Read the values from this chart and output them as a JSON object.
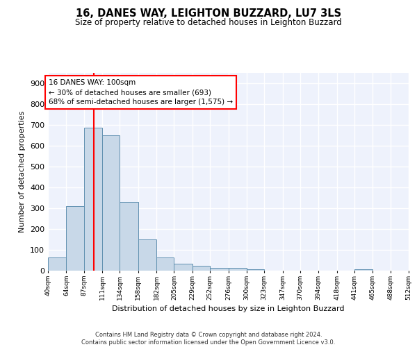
{
  "title1": "16, DANES WAY, LEIGHTON BUZZARD, LU7 3LS",
  "title2": "Size of property relative to detached houses in Leighton Buzzard",
  "xlabel": "Distribution of detached houses by size in Leighton Buzzard",
  "ylabel": "Number of detached properties",
  "footer": "Contains HM Land Registry data © Crown copyright and database right 2024.\nContains public sector information licensed under the Open Government Licence v3.0.",
  "annotation_title": "16 DANES WAY: 100sqm",
  "annotation_line1": "← 30% of detached houses are smaller (693)",
  "annotation_line2": "68% of semi-detached houses are larger (1,575) →",
  "property_size": 100,
  "bar_color": "#c8d8e8",
  "bar_edge_color": "#6090b0",
  "vline_color": "red",
  "background_color": "#eef2fc",
  "grid_color": "white",
  "bins": [
    40,
    64,
    87,
    111,
    134,
    158,
    182,
    205,
    229,
    252,
    276,
    300,
    323,
    347,
    370,
    394,
    418,
    441,
    465,
    488,
    512
  ],
  "bin_labels": [
    "40sqm",
    "64sqm",
    "87sqm",
    "111sqm",
    "134sqm",
    "158sqm",
    "182sqm",
    "205sqm",
    "229sqm",
    "252sqm",
    "276sqm",
    "300sqm",
    "323sqm",
    "347sqm",
    "370sqm",
    "394sqm",
    "418sqm",
    "441sqm",
    "465sqm",
    "488sqm",
    "512sqm"
  ],
  "counts": [
    62,
    311,
    688,
    650,
    330,
    150,
    62,
    32,
    22,
    12,
    12,
    8,
    0,
    0,
    0,
    0,
    0,
    8,
    0,
    0
  ],
  "ylim": [
    0,
    950
  ],
  "yticks": [
    0,
    100,
    200,
    300,
    400,
    500,
    600,
    700,
    800,
    900
  ]
}
